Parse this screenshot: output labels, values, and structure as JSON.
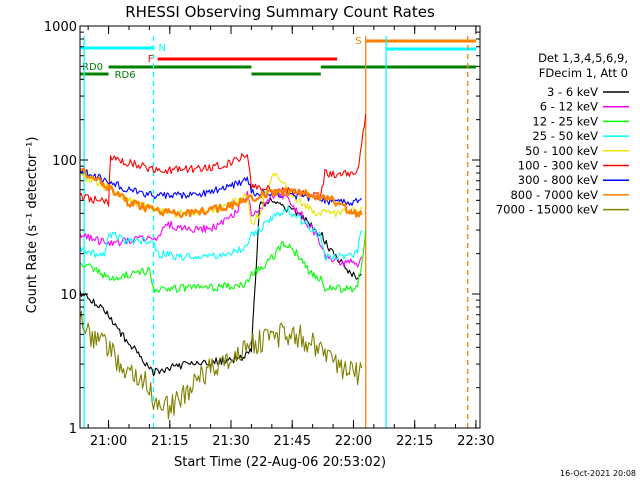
{
  "colors": {
    "black": "#000000",
    "magenta": "#ff00ff",
    "green": "#00ff00",
    "cyan": "#00ffff",
    "yellow": "#e6e600",
    "red": "#ff0000",
    "blue": "#0000ff",
    "orange": "#ff8000",
    "olive": "#808000",
    "darkgreen": "#008000"
  },
  "chart_data": {
    "type": "line",
    "title": "RHESSI Observing Summary Count Rates",
    "xlabel": "Start Time (22-Aug-06 20:53:02)",
    "ylabel": "Count Rate (s⁻¹ detector⁻¹)",
    "yscale": "log",
    "xlim": [
      "20:53",
      "22:31"
    ],
    "ylim": [
      1,
      1000
    ],
    "x_ticks": [
      "21:00",
      "21:15",
      "21:30",
      "21:45",
      "22:00",
      "22:15",
      "22:30"
    ],
    "y_ticks": [
      "1",
      "10",
      "100",
      "1000"
    ],
    "footer_date": "16-Oct-2021 20:08",
    "legend": {
      "header": [
        "Det 1,3,4,5,6,9,",
        "FDecim 1, Att 0"
      ],
      "entries": [
        {
          "label": "3 - 6 keV",
          "color": "#000000"
        },
        {
          "label": "6 - 12 keV",
          "color": "#ff00ff"
        },
        {
          "label": "12 - 25 keV",
          "color": "#00ff00"
        },
        {
          "label": "25 - 50 keV",
          "color": "#00ffff"
        },
        {
          "label": "50 - 100 keV",
          "color": "#e6e600"
        },
        {
          "label": "100 - 300 keV",
          "color": "#ff0000"
        },
        {
          "label": "300 - 800 keV",
          "color": "#0000ff"
        },
        {
          "label": "800 - 7000 keV",
          "color": "#ff8000"
        },
        {
          "label": "7000 - 15000 keV",
          "color": "#808000"
        }
      ]
    },
    "flag_bars": [
      {
        "label": "N",
        "color": "#00ffff",
        "segments": [
          [
            "20:53",
            "21:11"
          ]
        ]
      },
      {
        "label": "F",
        "color": "#ff0000",
        "segments": [
          [
            "21:12",
            "21:56"
          ]
        ]
      },
      {
        "label": "S",
        "color": "#ff8000",
        "segments": [
          [
            "22:03",
            "22:30"
          ]
        ]
      },
      {
        "label": "",
        "color": "#00ffff",
        "segments": [
          [
            "22:08",
            "22:30"
          ]
        ]
      },
      {
        "label": "RD0",
        "color": "#008000",
        "segments": [
          [
            "21:00",
            "21:35"
          ],
          [
            "21:52",
            "22:30"
          ]
        ]
      },
      {
        "label": "RD6",
        "color": "#008000",
        "segments": [
          [
            "20:53",
            "21:00"
          ],
          [
            "21:35",
            "21:52"
          ]
        ]
      }
    ],
    "vlines": [
      {
        "x": "20:54",
        "color": "#00ffff",
        "style": "solid"
      },
      {
        "x": "21:11",
        "color": "#00ffff",
        "style": "dashed"
      },
      {
        "x": "22:03",
        "color": "#ff8000",
        "style": "solid"
      },
      {
        "x": "22:08",
        "color": "#00ffff",
        "style": "solid"
      },
      {
        "x": "22:28",
        "color": "#ff8000",
        "style": "dashed"
      }
    ],
    "series": [
      {
        "name": "3 - 6 keV",
        "color": "#000000",
        "x": [
          "20:53",
          "20:56",
          "20:58",
          "21:00",
          "21:03",
          "21:06",
          "21:09",
          "21:11",
          "21:11.5",
          "21:15",
          "21:20",
          "21:25",
          "21:30",
          "21:33",
          "21:35",
          "21:37",
          "21:40",
          "21:43",
          "21:46",
          "21:49",
          "21:52",
          "21:55",
          "21:58",
          "22:00",
          "22:01",
          "22:02"
        ],
        "y": [
          10,
          9,
          8,
          7,
          5,
          4,
          3,
          2.5,
          2.6,
          2.8,
          3.0,
          3.1,
          3.2,
          3.4,
          3.8,
          45,
          50,
          45,
          40,
          35,
          28,
          20,
          16,
          14,
          13,
          14
        ]
      },
      {
        "name": "6 - 12 keV",
        "color": "#ff00ff",
        "x": [
          "20:53",
          "20:57",
          "21:00",
          "21:05",
          "21:09",
          "21:11",
          "21:13",
          "21:15",
          "21:18",
          "21:22",
          "21:27",
          "21:31",
          "21:34",
          "21:35",
          "21:37",
          "21:41",
          "21:44",
          "21:47",
          "21:50",
          "21:52",
          "21:53",
          "21:55",
          "21:58",
          "22:01",
          "22:02"
        ],
        "y": [
          28,
          25,
          24,
          25,
          26,
          24,
          30,
          33,
          31,
          30,
          32,
          40,
          55,
          40,
          42,
          58,
          50,
          40,
          30,
          24,
          19,
          18,
          17,
          17,
          19
        ]
      },
      {
        "name": "12 - 25 keV",
        "color": "#00ff00",
        "x": [
          "20:53",
          "20:57",
          "21:00",
          "21:05",
          "21:10",
          "21:11",
          "21:20",
          "21:30",
          "21:34",
          "21:35",
          "21:38",
          "21:41",
          "21:43",
          "21:46",
          "21:49",
          "21:52",
          "21:53",
          "21:57",
          "22:00",
          "22:01",
          "22:02",
          "22:03"
        ],
        "y": [
          17,
          15,
          13,
          14,
          15,
          11,
          11,
          11.5,
          12,
          14,
          16,
          20,
          24,
          20,
          15,
          13,
          11,
          11,
          11,
          12,
          16,
          30
        ]
      },
      {
        "name": "25 - 50 keV",
        "color": "#00ffff",
        "x": [
          "20:53",
          "20:56",
          "20:59",
          "21:00",
          "21:03",
          "21:06",
          "21:09",
          "21:11",
          "21:11.5",
          "21:18",
          "21:24",
          "21:30",
          "21:34",
          "21:35",
          "21:38",
          "21:41",
          "21:44",
          "21:47",
          "21:50",
          "21:52",
          "21:53",
          "21:57",
          "22:00",
          "22:01",
          "22:02"
        ],
        "y": [
          22,
          20,
          20,
          28,
          26,
          24,
          25,
          26,
          20,
          19,
          19,
          20,
          23,
          28,
          32,
          40,
          42,
          36,
          30,
          27,
          19,
          19,
          19,
          21,
          30
        ]
      },
      {
        "name": "50 - 100 keV",
        "color": "#e6e600",
        "x": [
          "20:53",
          "20:56",
          "21:00",
          "21:05",
          "21:10",
          "21:15",
          "21:20",
          "21:25",
          "21:30",
          "21:34",
          "21:35",
          "21:37",
          "21:39",
          "21:41",
          "21:43",
          "21:45",
          "21:48",
          "21:51",
          "21:52",
          "21:55",
          "21:58",
          "22:01",
          "22:02"
        ],
        "y": [
          78,
          70,
          62,
          50,
          44,
          40,
          40,
          42,
          47,
          55,
          32,
          40,
          65,
          80,
          70,
          55,
          45,
          40,
          40,
          40,
          41,
          42,
          45
        ]
      },
      {
        "name": "100 - 300 keV",
        "color": "#ff0000",
        "x": [
          "20:53",
          "20:57",
          "21:00",
          "21:00.5",
          "21:05",
          "21:10",
          "21:15",
          "21:20",
          "21:25",
          "21:30",
          "21:34",
          "21:35",
          "21:40",
          "21:45",
          "21:50",
          "21:52",
          "21:53",
          "21:57",
          "22:00",
          "22:01",
          "22:02",
          "22:03"
        ],
        "y": [
          55,
          50,
          48,
          105,
          95,
          87,
          84,
          85,
          88,
          95,
          110,
          62,
          60,
          58,
          55,
          52,
          80,
          78,
          80,
          85,
          130,
          220
        ]
      },
      {
        "name": "300 - 800 keV",
        "color": "#0000ff",
        "x": [
          "20:53",
          "20:57",
          "21:00",
          "21:05",
          "21:10",
          "21:15",
          "21:20",
          "21:25",
          "21:30",
          "21:34",
          "21:35",
          "21:40",
          "21:45",
          "21:50",
          "21:52",
          "21:57",
          "22:00",
          "22:02"
        ],
        "y": [
          85,
          75,
          68,
          60,
          55,
          54,
          55,
          58,
          64,
          72,
          58,
          56,
          55,
          52,
          50,
          48,
          48,
          52
        ]
      },
      {
        "name": "800 - 7000 keV",
        "color": "#ff8000",
        "x": [
          "20:53",
          "20:57",
          "21:00",
          "21:05",
          "21:10",
          "21:15",
          "21:20",
          "21:25",
          "21:30",
          "21:35",
          "21:40",
          "21:45",
          "21:50",
          "21:55",
          "22:00",
          "22:02"
        ],
        "y": [
          82,
          75,
          62,
          48,
          43,
          40,
          40,
          42,
          46,
          52,
          58,
          58,
          55,
          50,
          40,
          39
        ]
      },
      {
        "name": "7000 - 15000 keV",
        "color": "#808000",
        "x": [
          "20:53",
          "20:55",
          "20:58",
          "21:00",
          "21:02",
          "21:05",
          "21:09",
          "21:11",
          "21:15",
          "21:18",
          "21:22",
          "21:26",
          "21:30",
          "21:33",
          "21:35",
          "21:40",
          "21:45",
          "21:48",
          "21:50",
          "21:52",
          "21:55",
          "21:58",
          "22:01",
          "22:02"
        ],
        "y": [
          7,
          5,
          4.5,
          4,
          3.2,
          2.6,
          2.3,
          1.6,
          1.4,
          1.7,
          2.3,
          2.9,
          3.3,
          3.6,
          4.2,
          4.8,
          5.2,
          4.6,
          4.2,
          3.6,
          3.0,
          2.7,
          2.5,
          2.8
        ]
      }
    ]
  }
}
